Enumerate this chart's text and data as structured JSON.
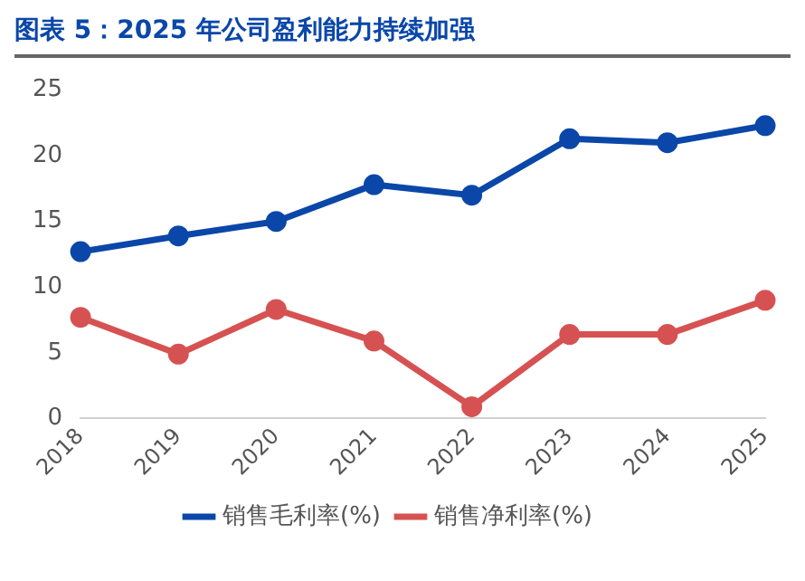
{
  "chart_data": {
    "type": "line",
    "title": "图表 5：2025 年公司盈利能力持续加强",
    "categories": [
      "2018",
      "2019",
      "2020",
      "2021",
      "2022",
      "2023",
      "2024",
      "2025"
    ],
    "series": [
      {
        "name": "销售毛利率(%)",
        "color": "#0a47a8",
        "values": [
          12.7,
          13.9,
          15.0,
          17.8,
          17.0,
          21.3,
          21.0,
          22.3
        ]
      },
      {
        "name": "销售净利率(%)",
        "color": "#d65252",
        "values": [
          7.7,
          4.9,
          8.3,
          5.9,
          0.9,
          6.4,
          6.4,
          9.0
        ]
      }
    ],
    "ylim": [
      0,
      25
    ],
    "yticks": [
      0,
      5,
      10,
      15,
      20,
      25
    ],
    "grid": false,
    "legend": "bottom",
    "marker": "circle",
    "line_style": "solid"
  }
}
